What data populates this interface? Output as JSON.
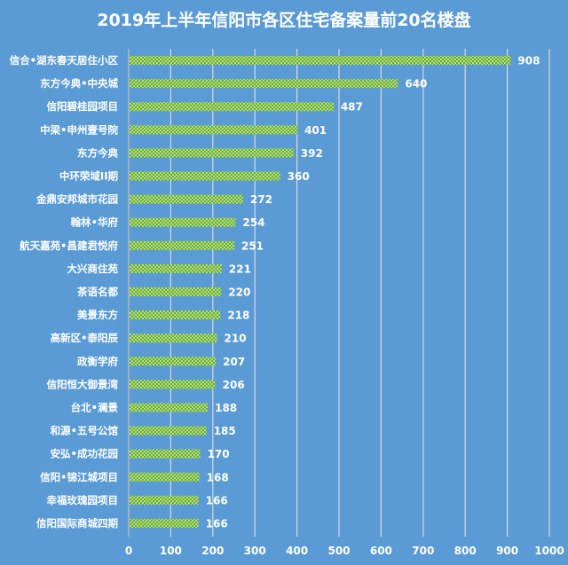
{
  "chart_data": {
    "type": "bar",
    "orientation": "horizontal",
    "title": "2019年上半年信阳市各区住宅备案量前20名楼盘",
    "xlabel": "",
    "ylabel": "",
    "xlim": [
      0,
      1000
    ],
    "xticks": [
      0,
      100,
      200,
      300,
      400,
      500,
      600,
      700,
      800,
      900,
      1000
    ],
    "grid": true,
    "categories": [
      "信合•湖东春天居住小区",
      "东方今典•中央城",
      "信阳碧桂园项目",
      "中梁•申州壹号院",
      "东方今典",
      "中环荣域II期",
      "金鼎安邦城市花园",
      "翰林•华府",
      "航天嘉苑•昌建君悦府",
      "大兴商住苑",
      "茶语名都",
      "美景东方",
      "高新区•泰阳辰",
      "政衡学府",
      "信阳恒大御景湾",
      "台北•澜景",
      "和源•五号公馆",
      "安弘•成功花园",
      "信阳•锦江城项目",
      "幸福玫瑰园项目",
      "信阳国际商城四期"
    ],
    "values": [
      908,
      640,
      487,
      401,
      392,
      360,
      272,
      254,
      251,
      221,
      220,
      218,
      210,
      207,
      206,
      188,
      185,
      170,
      168,
      166,
      166
    ],
    "colors": {
      "background": "#5b9bd5",
      "bar": "#92d050",
      "bar_pattern": "#6aa84f",
      "grid": "#d9d9d9"
    }
  }
}
